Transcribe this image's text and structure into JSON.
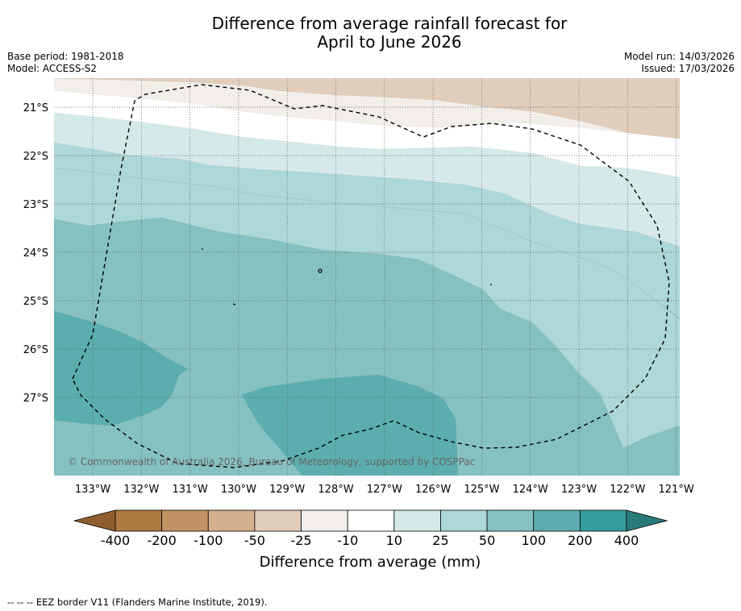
{
  "title": {
    "line1": "Difference from average rainfall forecast for",
    "line2": "April to June 2026"
  },
  "meta": {
    "base_period": "Base period: 1981-2018",
    "model": "Model: ACCESS-S2",
    "model_run": "Model run: 14/03/2026",
    "issued": "Issued: 17/03/2026"
  },
  "map": {
    "lat_labels": [
      "21°S",
      "22°S",
      "23°S",
      "24°S",
      "25°S",
      "26°S",
      "27°S"
    ],
    "lon_labels": [
      "133°W",
      "132°W",
      "131°W",
      "130°W",
      "129°W",
      "128°W",
      "127°W",
      "126°W",
      "125°W",
      "124°W",
      "123°W",
      "122°W",
      "121°W"
    ],
    "copyright": "© Commonwealth of Australia 2026, Bureau of Meteorology, supported by COSPPac"
  },
  "colorbar": {
    "ticks": [
      "-400",
      "-200",
      "-100",
      "-50",
      "-25",
      "-10",
      "10",
      "25",
      "50",
      "100",
      "200",
      "400"
    ],
    "colors": [
      "#ad7941",
      "#c29265",
      "#d3b08d",
      "#e1cdbb",
      "#f2eee9",
      "#ffffff",
      "#d5e9e9",
      "#aed7d7",
      "#86c1c1",
      "#5caeae",
      "#349c9a"
    ],
    "under_color": "#8f5e2e",
    "over_color": "#2a7a78",
    "label": "Difference from average (mm)"
  },
  "footnote": "--  --  -- EEZ border V11 (Flanders Marine Institute, 2019)."
}
